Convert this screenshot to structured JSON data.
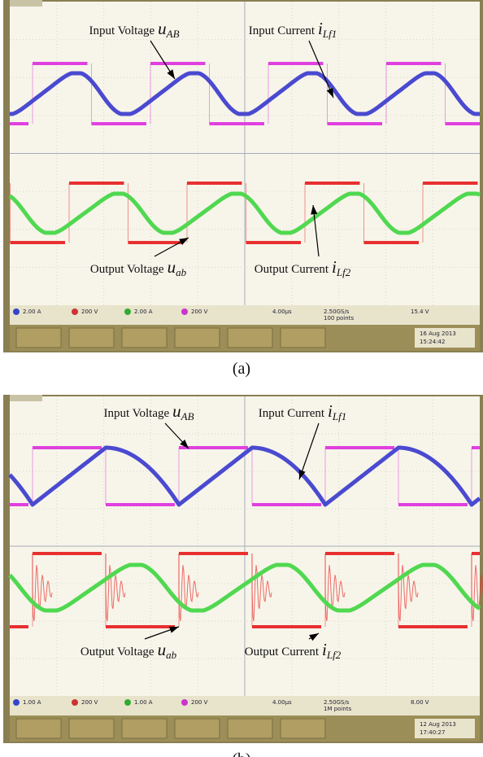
{
  "panels": [
    {
      "caption": "(a)",
      "annotations": [
        {
          "label": "Input Voltage",
          "symbol": "u",
          "subscript": "AB"
        },
        {
          "label": "Input Current",
          "symbol": "i",
          "subscript": "Lf1"
        },
        {
          "label": "Output Voltage",
          "symbol": "u",
          "subscript": "ab"
        },
        {
          "label": "Output Current",
          "symbol": "i",
          "subscript": "Lf2"
        }
      ],
      "status": [
        "2.00 A",
        "200 V",
        "2.00 A",
        "200 V",
        "4.00µs",
        "2.50GS/s",
        "100 points",
        "15.4 V"
      ],
      "date": "16 Aug 2013",
      "time": "15:24:42"
    },
    {
      "caption": "(b)",
      "annotations": [
        {
          "label": "Input Voltage",
          "symbol": "u",
          "subscript": "AB"
        },
        {
          "label": "Input Current",
          "symbol": "i",
          "subscript": "Lf1"
        },
        {
          "label": "Output Voltage",
          "symbol": "u",
          "subscript": "ab"
        },
        {
          "label": "Output Current",
          "symbol": "i",
          "subscript": "Lf2"
        }
      ],
      "status": [
        "1.00 A",
        "200 V",
        "1.00 A",
        "200 V",
        "4.00µs",
        "2.50GS/s",
        "1M points",
        "8.00 V"
      ],
      "date": "12 Aug 2013",
      "time": "17:40:27"
    }
  ]
}
